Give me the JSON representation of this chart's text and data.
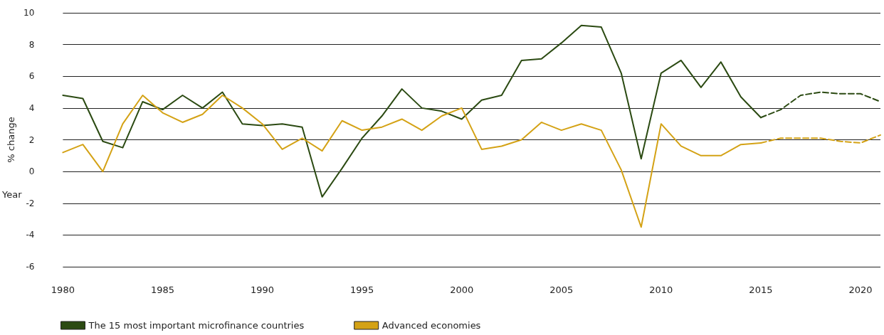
{
  "chart_data": {
    "type": "line",
    "xlabel": "Year",
    "ylabel": "% change",
    "xlim": [
      1980,
      2021
    ],
    "xticks": [
      1980,
      1985,
      1990,
      1995,
      2000,
      2005,
      2010,
      2015,
      2020
    ],
    "ylim": [
      -6,
      10
    ],
    "yticks": [
      -6,
      -4,
      -2,
      0,
      2,
      4,
      6,
      8,
      10
    ],
    "grid": "y",
    "legend": "bottom left",
    "marker": "none",
    "series": [
      {
        "name": "The 15 most important microfinance countries",
        "color": "#2b4a12",
        "line_style": "solid",
        "x": [
          1980,
          1981,
          1982,
          1983,
          1984,
          1985,
          1986,
          1987,
          1988,
          1989,
          1990,
          1991,
          1992,
          1993,
          1994,
          1995,
          1996,
          1997,
          1998,
          1999,
          2000,
          2001,
          2002,
          2003,
          2004,
          2005,
          2006,
          2007,
          2008,
          2009,
          2010,
          2011,
          2012,
          2013,
          2014,
          2015
        ],
        "values": [
          4.8,
          4.6,
          1.9,
          1.5,
          4.4,
          3.9,
          4.8,
          4.0,
          5.0,
          3.0,
          2.9,
          3.0,
          2.8,
          -1.6,
          0.2,
          2.1,
          3.5,
          5.2,
          4.0,
          3.8,
          3.3,
          4.5,
          4.8,
          7.0,
          7.1,
          8.1,
          9.2,
          9.1,
          6.2,
          0.8,
          6.2,
          7.0,
          5.3,
          6.9,
          4.7,
          3.4
        ]
      },
      {
        "color": "#2b4a12",
        "line_style": "dashed",
        "x": [
          2015,
          2016,
          2017,
          2018,
          2019,
          2020,
          2021
        ],
        "values": [
          3.4,
          3.9,
          4.8,
          5.0,
          4.9,
          4.9,
          4.4
        ]
      },
      {
        "name": "Advanced economies",
        "color": "#d4a215",
        "line_style": "solid",
        "x": [
          1980,
          1981,
          1982,
          1983,
          1984,
          1985,
          1986,
          1987,
          1988,
          1989,
          1990,
          1991,
          1992,
          1993,
          1994,
          1995,
          1996,
          1997,
          1998,
          1999,
          2000,
          2001,
          2002,
          2003,
          2004,
          2005,
          2006,
          2007,
          2008,
          2009,
          2010,
          2011,
          2012,
          2013,
          2014,
          2015
        ],
        "values": [
          1.2,
          1.7,
          0.0,
          3.0,
          4.8,
          3.7,
          3.1,
          3.6,
          4.8,
          4.0,
          3.0,
          1.4,
          2.1,
          1.3,
          3.2,
          2.6,
          2.8,
          3.3,
          2.6,
          3.5,
          4.0,
          1.4,
          1.6,
          2.0,
          3.1,
          2.6,
          3.0,
          2.6,
          0.1,
          -3.5,
          3.0,
          1.6,
          1.0,
          1.0,
          1.7,
          1.8
        ]
      },
      {
        "color": "#d4a215",
        "line_style": "dashed",
        "x": [
          2015,
          2016,
          2017,
          2018,
          2019,
          2020,
          2021
        ],
        "values": [
          1.8,
          2.1,
          2.1,
          2.1,
          1.9,
          1.8,
          2.3
        ]
      }
    ]
  }
}
